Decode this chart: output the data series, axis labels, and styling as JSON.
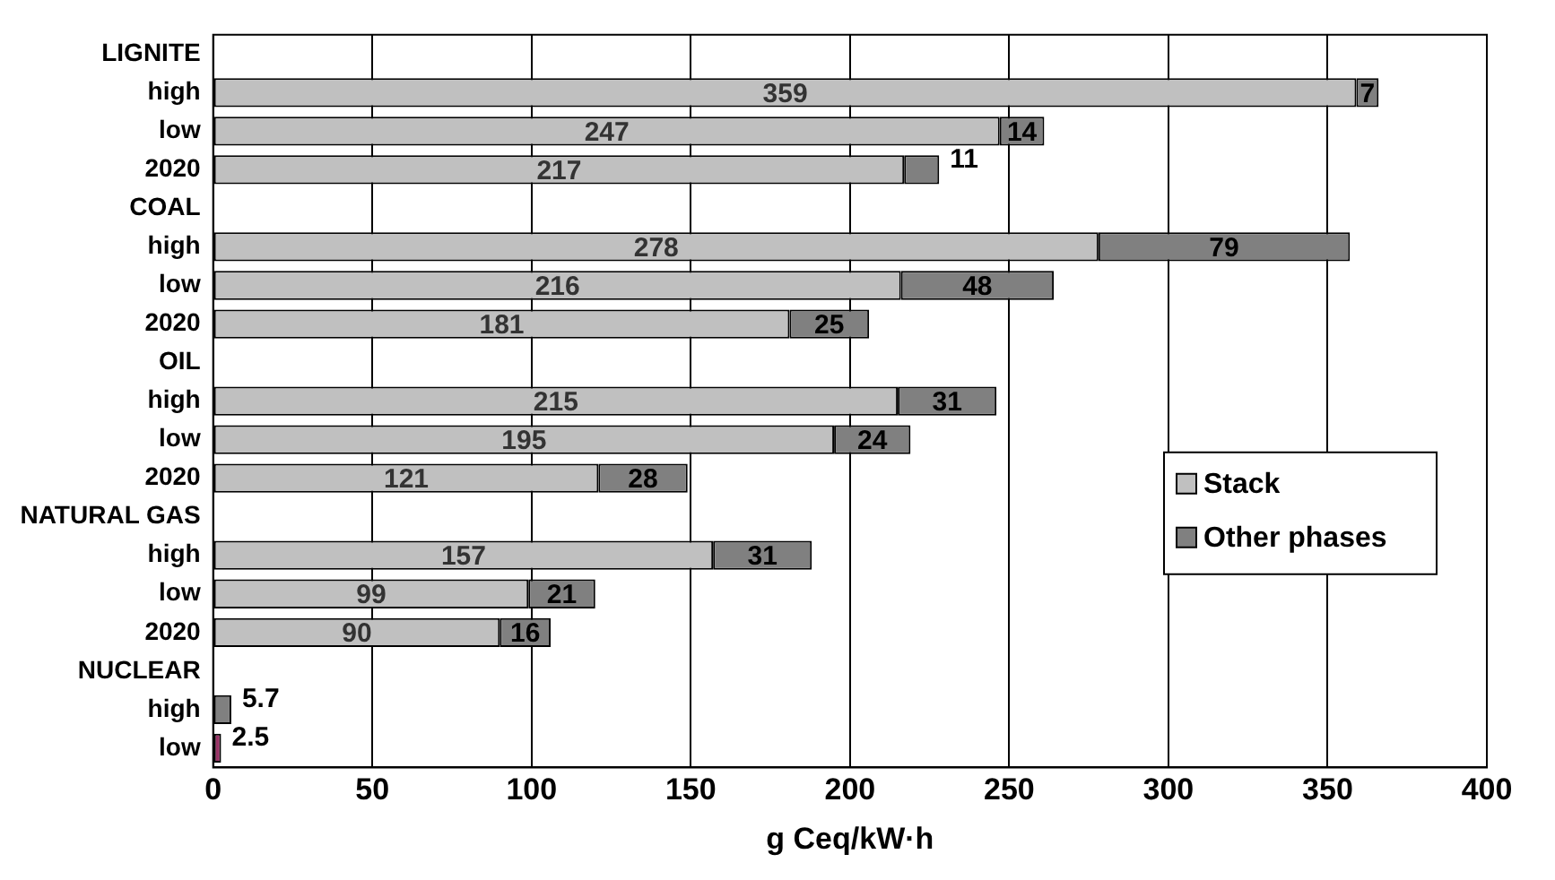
{
  "chart_data": {
    "type": "bar",
    "orientation": "horizontal",
    "stacked": true,
    "xlabel": "g Ceq/kW·h",
    "categories": [
      "LIGNITE",
      "high",
      "low",
      "2020",
      "COAL",
      "high",
      "low",
      "2020",
      "OIL",
      "high",
      "low",
      "2020",
      "NATURAL GAS",
      "high",
      "low",
      "2020",
      "NUCLEAR",
      "high",
      "low"
    ],
    "series": [
      {
        "name": "Stack",
        "color": "#c0c0c0",
        "values": [
          null,
          359,
          247,
          217,
          null,
          278,
          216,
          181,
          null,
          215,
          195,
          121,
          null,
          157,
          99,
          90,
          null,
          null,
          null
        ]
      },
      {
        "name": "Other phases",
        "color": "#808080",
        "colors": [
          "#808080",
          "#808080",
          "#808080",
          "#808080",
          "#808080",
          "#808080",
          "#808080",
          "#808080",
          "#808080",
          "#808080",
          "#808080",
          "#808080",
          "#808080",
          "#808080",
          "#808080",
          "#808080",
          "#808080",
          "#808080",
          "#993366"
        ],
        "values": [
          null,
          7,
          14,
          11,
          null,
          79,
          48,
          25,
          null,
          31,
          24,
          28,
          null,
          31,
          21,
          16,
          null,
          5.7,
          2.5
        ]
      }
    ],
    "xlim": [
      0,
      400
    ],
    "xticks": [
      0,
      50,
      100,
      150,
      200,
      250,
      300,
      350,
      400
    ],
    "grid": "x",
    "legend": "right",
    "data_labels": true
  }
}
